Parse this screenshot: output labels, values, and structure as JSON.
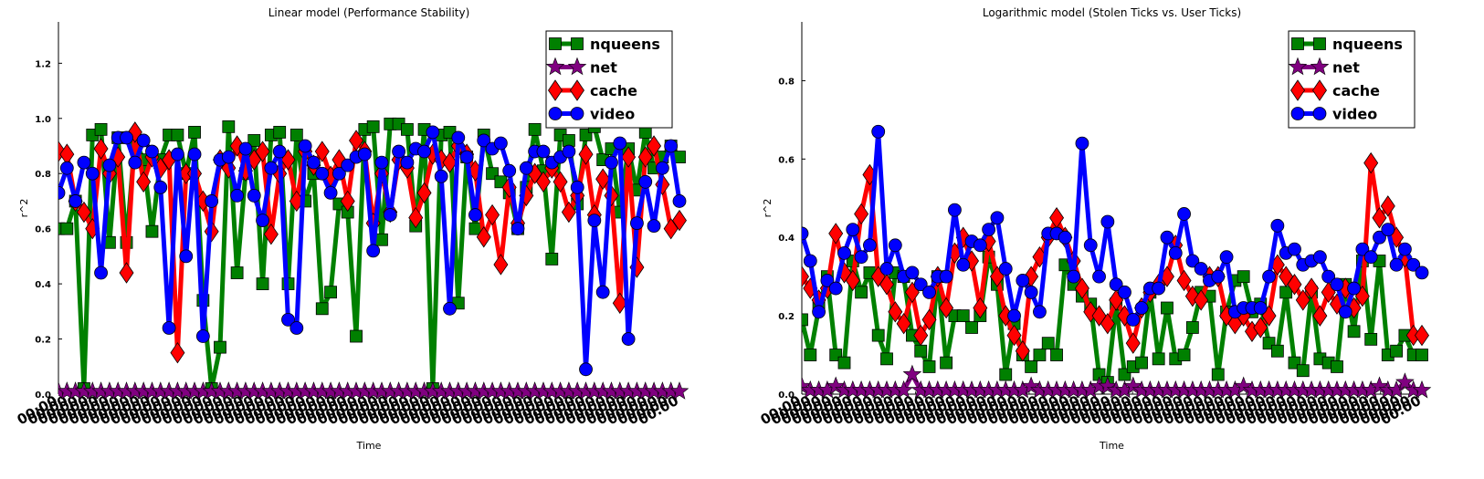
{
  "colors": {
    "nqueens": "#008000",
    "net": "#800080",
    "cache": "#ff0000",
    "video": "#0000ff"
  },
  "chart_data": [
    {
      "type": "line",
      "title": "Linear model (Performance Stability)",
      "xlabel": "Time",
      "ylabel": "r^2",
      "ylim": [
        0,
        1.35
      ],
      "yticks": [
        "0.0",
        "0.2",
        "0.4",
        "0.6",
        "0.8",
        "1.0",
        "1.2"
      ],
      "ytick_values": [
        0,
        0.2,
        0.4,
        0.6,
        0.8,
        1.0,
        1.2
      ],
      "legend_position": "top-right",
      "grid": false,
      "x_tick_label": "00:00",
      "series": [
        {
          "name": "nqueens",
          "marker": "square",
          "values": [
            0.6,
            0.6,
            0.7,
            0.02,
            0.94,
            0.96,
            0.55,
            0.93,
            0.55,
            0.92,
            0.85,
            0.59,
            0.85,
            0.94,
            0.94,
            0.8,
            0.95,
            0.34,
            0.02,
            0.17,
            0.97,
            0.44,
            0.8,
            0.92,
            0.4,
            0.94,
            0.95,
            0.4,
            0.94,
            0.7,
            0.8,
            0.31,
            0.37,
            0.69,
            0.66,
            0.21,
            0.96,
            0.97,
            0.56,
            0.98,
            0.98,
            0.96,
            0.61,
            0.96,
            0.02,
            0.94,
            0.95,
            0.33,
            0.86,
            0.6,
            0.94,
            0.8,
            0.77,
            0.73,
            0.6,
            0.75,
            0.96,
            0.81,
            0.49,
            0.94,
            0.92,
            0.69,
            0.94,
            0.97,
            0.85,
            0.89,
            0.66,
            0.89,
            0.74,
            0.95,
            0.82,
            0.86,
            0.9,
            0.86
          ]
        },
        {
          "name": "net",
          "marker": "star",
          "values": [
            0.01,
            0.01,
            0.01,
            0.01,
            0.01,
            0.01,
            0.01,
            0.01,
            0.01,
            0.01,
            0.01,
            0.01,
            0.01,
            0.01,
            0.01,
            0.01,
            0.01,
            0.01,
            0.01,
            0.01,
            0.01,
            0.01,
            0.01,
            0.01,
            0.01,
            0.01,
            0.01,
            0.01,
            0.01,
            0.01,
            0.01,
            0.01,
            0.01,
            0.01,
            0.01,
            0.01,
            0.01,
            0.01,
            0.01,
            0.01,
            0.01,
            0.01,
            0.01,
            0.01,
            0.01,
            0.01,
            0.01,
            0.01,
            0.01,
            0.01,
            0.01,
            0.01,
            0.01,
            0.01,
            0.01,
            0.01,
            0.01,
            0.01,
            0.01,
            0.01,
            0.01,
            0.01,
            0.01,
            0.01,
            0.01,
            0.01,
            0.01,
            0.01,
            0.01,
            0.01,
            0.01,
            0.01,
            0.01,
            0.01
          ]
        },
        {
          "name": "cache",
          "marker": "diamond",
          "values": [
            0.88,
            0.87,
            0.7,
            0.66,
            0.6,
            0.89,
            0.8,
            0.86,
            0.44,
            0.95,
            0.77,
            0.86,
            0.82,
            0.85,
            0.15,
            0.8,
            0.8,
            0.7,
            0.59,
            0.85,
            0.82,
            0.9,
            0.81,
            0.85,
            0.88,
            0.58,
            0.8,
            0.85,
            0.7,
            0.88,
            0.83,
            0.88,
            0.79,
            0.85,
            0.7,
            0.92,
            0.88,
            0.62,
            0.8,
            0.66,
            0.85,
            0.82,
            0.64,
            0.73,
            0.87,
            0.85,
            0.84,
            0.9,
            0.87,
            0.81,
            0.57,
            0.65,
            0.47,
            0.75,
            0.62,
            0.72,
            0.8,
            0.77,
            0.82,
            0.77,
            0.66,
            0.72,
            0.87,
            0.65,
            0.78,
            0.72,
            0.33,
            0.86,
            0.46,
            0.86,
            0.9,
            0.76,
            0.6,
            0.63
          ]
        },
        {
          "name": "video",
          "marker": "circle",
          "values": [
            0.73,
            0.82,
            0.7,
            0.84,
            0.8,
            0.44,
            0.83,
            0.93,
            0.93,
            0.84,
            0.92,
            0.88,
            0.75,
            0.24,
            0.87,
            0.5,
            0.87,
            0.21,
            0.7,
            0.85,
            0.86,
            0.72,
            0.89,
            0.72,
            0.63,
            0.82,
            0.88,
            0.27,
            0.24,
            0.9,
            0.84,
            0.8,
            0.73,
            0.8,
            0.83,
            0.86,
            0.87,
            0.52,
            0.84,
            0.65,
            0.88,
            0.84,
            0.89,
            0.88,
            0.95,
            0.79,
            0.31,
            0.93,
            0.86,
            0.65,
            0.92,
            0.89,
            0.91,
            0.81,
            0.6,
            0.82,
            0.88,
            0.88,
            0.84,
            0.86,
            0.88,
            0.75,
            0.09,
            0.63,
            0.37,
            0.84,
            0.91,
            0.2,
            0.62,
            0.77,
            0.61,
            0.82,
            0.9,
            0.7
          ]
        }
      ]
    },
    {
      "type": "line",
      "title": "Logarithmic model (Stolen Ticks vs. User Ticks)",
      "xlabel": "Time",
      "ylabel": "r^2",
      "ylim": [
        0,
        0.95
      ],
      "yticks": [
        "0.0",
        "0.2",
        "0.4",
        "0.6",
        "0.8"
      ],
      "ytick_values": [
        0,
        0.2,
        0.4,
        0.6,
        0.8
      ],
      "legend_position": "top-right",
      "grid": false,
      "x_tick_label": "00:00",
      "series": [
        {
          "name": "nqueens",
          "marker": "square",
          "values": [
            0.19,
            0.1,
            0.22,
            0.3,
            0.1,
            0.08,
            0.34,
            0.26,
            0.31,
            0.15,
            0.09,
            0.31,
            0.3,
            0.15,
            0.11,
            0.07,
            0.3,
            0.08,
            0.2,
            0.2,
            0.17,
            0.2,
            0.35,
            0.28,
            0.05,
            0.18,
            0.1,
            0.07,
            0.1,
            0.13,
            0.1,
            0.33,
            0.28,
            0.25,
            0.23,
            0.05,
            0.03,
            0.23,
            0.05,
            0.07,
            0.08,
            0.26,
            0.09,
            0.22,
            0.09,
            0.1,
            0.17,
            0.26,
            0.25,
            0.05,
            0.21,
            0.29,
            0.3,
            0.21,
            0.23,
            0.13,
            0.11,
            0.26,
            0.08,
            0.06,
            0.26,
            0.09,
            0.08,
            0.07,
            0.28,
            0.16,
            0.34,
            0.14,
            0.34,
            0.1,
            0.11,
            0.15,
            0.1,
            0.1
          ]
        },
        {
          "name": "net",
          "marker": "star",
          "values": [
            0.02,
            0.01,
            0.01,
            0.01,
            0.02,
            0.01,
            0.01,
            0.01,
            0.01,
            0.01,
            0.01,
            0.01,
            0.01,
            0.05,
            0.01,
            0.01,
            0.01,
            0.01,
            0.01,
            0.01,
            0.01,
            0.01,
            0.01,
            0.01,
            0.01,
            0.01,
            0.01,
            0.02,
            0.01,
            0.01,
            0.01,
            0.01,
            0.01,
            0.01,
            0.01,
            0.02,
            0.02,
            0.01,
            0.01,
            0.02,
            0.01,
            0.01,
            0.01,
            0.01,
            0.01,
            0.01,
            0.01,
            0.01,
            0.01,
            0.01,
            0.01,
            0.01,
            0.02,
            0.01,
            0.01,
            0.01,
            0.01,
            0.01,
            0.01,
            0.01,
            0.01,
            0.01,
            0.01,
            0.01,
            0.01,
            0.01,
            0.01,
            0.01,
            0.02,
            0.01,
            0.01,
            0.03,
            0.01,
            0.01
          ]
        },
        {
          "name": "cache",
          "marker": "diamond",
          "values": [
            0.3,
            0.27,
            0.24,
            0.27,
            0.41,
            0.31,
            0.29,
            0.46,
            0.56,
            0.3,
            0.28,
            0.21,
            0.18,
            0.26,
            0.15,
            0.19,
            0.3,
            0.22,
            0.36,
            0.4,
            0.34,
            0.22,
            0.39,
            0.3,
            0.2,
            0.15,
            0.11,
            0.3,
            0.35,
            0.4,
            0.45,
            0.4,
            0.34,
            0.27,
            0.21,
            0.2,
            0.18,
            0.24,
            0.2,
            0.13,
            0.22,
            0.26,
            0.28,
            0.3,
            0.38,
            0.29,
            0.25,
            0.24,
            0.3,
            0.3,
            0.2,
            0.18,
            0.2,
            0.16,
            0.17,
            0.2,
            0.33,
            0.3,
            0.28,
            0.24,
            0.27,
            0.2,
            0.26,
            0.23,
            0.27,
            0.22,
            0.25,
            0.59,
            0.45,
            0.48,
            0.4,
            0.35,
            0.15,
            0.15
          ]
        },
        {
          "name": "video",
          "marker": "circle",
          "values": [
            0.41,
            0.34,
            0.21,
            0.29,
            0.27,
            0.36,
            0.42,
            0.35,
            0.38,
            0.67,
            0.32,
            0.38,
            0.3,
            0.31,
            0.28,
            0.26,
            0.3,
            0.3,
            0.47,
            0.33,
            0.39,
            0.38,
            0.42,
            0.45,
            0.32,
            0.2,
            0.29,
            0.26,
            0.21,
            0.41,
            0.41,
            0.4,
            0.3,
            0.64,
            0.38,
            0.3,
            0.44,
            0.28,
            0.26,
            0.19,
            0.22,
            0.27,
            0.27,
            0.4,
            0.36,
            0.46,
            0.34,
            0.32,
            0.29,
            0.3,
            0.35,
            0.21,
            0.22,
            0.22,
            0.22,
            0.3,
            0.43,
            0.36,
            0.37,
            0.33,
            0.34,
            0.35,
            0.3,
            0.28,
            0.21,
            0.27,
            0.37,
            0.35,
            0.4,
            0.42,
            0.33,
            0.37,
            0.33,
            0.31
          ]
        }
      ]
    }
  ]
}
